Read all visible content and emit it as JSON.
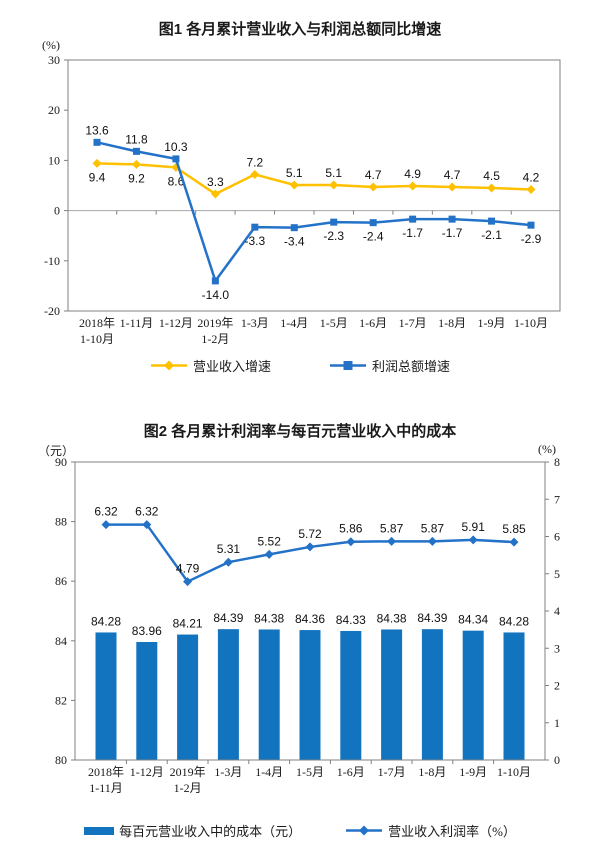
{
  "figure1": {
    "title": "图1  各月累计营业收入与利润总额同比增速",
    "y_unit": "(%)",
    "legend": [
      "营业收入增速",
      "利润总额增速"
    ]
  },
  "figure2": {
    "title": "图2  各月累计利润率与每百元营业收入中的成本",
    "left_unit": "（元）",
    "right_unit": "(%)",
    "legend": [
      "每百元营业收入中的成本（元）",
      "营业收入利润率（%）"
    ]
  },
  "colors": {
    "yellow_line": "#FFC000",
    "blue_line": "#2372C8",
    "bar_blue": "#1274BE",
    "plot_border": "#808080",
    "zero_line": "#a6a6a6",
    "text": "#1a1a1a"
  },
  "chart_data": [
    {
      "id": "figure1",
      "type": "line",
      "title": "图1  各月累计营业收入与利润总额同比增速",
      "y_axis": {
        "unit": "(%)",
        "min": -20,
        "max": 30,
        "ticks": [
          30,
          20,
          10,
          0,
          -10,
          -20
        ]
      },
      "grid": "zero-line-only",
      "legend_position": "bottom",
      "categories": [
        [
          "2018年",
          "1-10月"
        ],
        [
          "1-11月"
        ],
        [
          "1-12月"
        ],
        [
          "2019年",
          "1-2月"
        ],
        [
          "1-3月"
        ],
        [
          "1-4月"
        ],
        [
          "1-5月"
        ],
        [
          "1-6月"
        ],
        [
          "1-7月"
        ],
        [
          "1-8月"
        ],
        [
          "1-9月"
        ],
        [
          "1-10月"
        ]
      ],
      "series": [
        {
          "name": "营业收入增速",
          "color": "#FFC000",
          "marker": "diamond",
          "values": [
            9.4,
            9.2,
            8.6,
            3.3,
            7.2,
            5.1,
            5.1,
            4.7,
            4.9,
            4.7,
            4.5,
            4.2
          ],
          "labels": [
            "9.4",
            "9.2",
            "8.6",
            "3.3",
            "7.2",
            "5.1",
            "5.1",
            "4.7",
            "4.9",
            "4.7",
            "4.5",
            "4.2"
          ],
          "label_side": [
            "below",
            "below",
            "below",
            "above",
            "above",
            "above",
            "above",
            "above",
            "above",
            "above",
            "above",
            "above"
          ]
        },
        {
          "name": "利润总额增速",
          "color": "#2372C8",
          "marker": "square",
          "values": [
            13.6,
            11.8,
            10.3,
            -14.0,
            -3.3,
            -3.4,
            -2.3,
            -2.4,
            -1.7,
            -1.7,
            -2.1,
            -2.9
          ],
          "labels": [
            "13.6",
            "11.8",
            "10.3",
            "-14.0",
            "-3.3",
            "-3.4",
            "-2.3",
            "-2.4",
            "-1.7",
            "-1.7",
            "-2.1",
            "-2.9"
          ],
          "label_side": [
            "above",
            "above",
            "above",
            "below",
            "below",
            "below",
            "below",
            "below",
            "below",
            "below",
            "below",
            "below"
          ]
        }
      ]
    },
    {
      "id": "figure2",
      "type": "bar+line",
      "title": "图2  各月累计利润率与每百元营业收入中的成本",
      "left_axis": {
        "unit": "（元）",
        "min": 80,
        "max": 90,
        "ticks": [
          90,
          88,
          86,
          84,
          82,
          80
        ]
      },
      "right_axis": {
        "unit": "(%)",
        "min": 0,
        "max": 8,
        "ticks": [
          8,
          7,
          6,
          5,
          4,
          3,
          2,
          1,
          0
        ]
      },
      "legend_position": "bottom",
      "categories": [
        [
          "2018年",
          "1-11月"
        ],
        [
          "1-12月"
        ],
        [
          "2019年",
          "1-2月"
        ],
        [
          "1-3月"
        ],
        [
          "1-4月"
        ],
        [
          "1-5月"
        ],
        [
          "1-6月"
        ],
        [
          "1-7月"
        ],
        [
          "1-8月"
        ],
        [
          "1-9月"
        ],
        [
          "1-10月"
        ]
      ],
      "bar_series": {
        "name": "每百元营业收入中的成本（元）",
        "color": "#1274BE",
        "axis": "left",
        "values": [
          84.28,
          83.96,
          84.21,
          84.39,
          84.38,
          84.36,
          84.33,
          84.38,
          84.39,
          84.34,
          84.28
        ],
        "labels": [
          "84.28",
          "83.96",
          "84.21",
          "84.39",
          "84.38",
          "84.36",
          "84.33",
          "84.38",
          "84.39",
          "84.34",
          "84.28"
        ]
      },
      "line_series": {
        "name": "营业收入利润率（%）",
        "color": "#2372C8",
        "marker": "diamond",
        "axis": "right",
        "values": [
          6.32,
          6.32,
          4.79,
          5.31,
          5.52,
          5.72,
          5.86,
          5.87,
          5.87,
          5.91,
          5.85
        ],
        "labels": [
          "6.32",
          "6.32",
          "4.79",
          "5.31",
          "5.52",
          "5.72",
          "5.86",
          "5.87",
          "5.87",
          "5.91",
          "5.85"
        ]
      }
    }
  ]
}
